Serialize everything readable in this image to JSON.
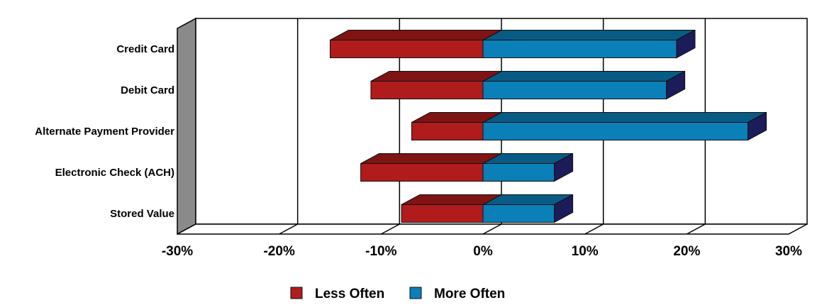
{
  "chart_data": {
    "type": "bar",
    "orientation": "horizontal",
    "style": "3d-diverging",
    "categories": [
      "Credit Card",
      "Debit Card",
      "Alternate Payment Provider",
      "Electronic Check (ACH)",
      "Stored Value"
    ],
    "series": [
      {
        "name": "Less Often",
        "values": [
          -15,
          -11,
          -7,
          -12,
          -8
        ],
        "color": "#b01c1c"
      },
      {
        "name": "More Often",
        "values": [
          19,
          18,
          26,
          7,
          7
        ],
        "color": "#0a7fb8"
      }
    ],
    "xticks": [
      "-30%",
      "-20%",
      "-10%",
      "0%",
      "10%",
      "20%",
      "30%"
    ],
    "xlim": [
      -30,
      30
    ],
    "grid": true,
    "legend": "bottom-center"
  }
}
